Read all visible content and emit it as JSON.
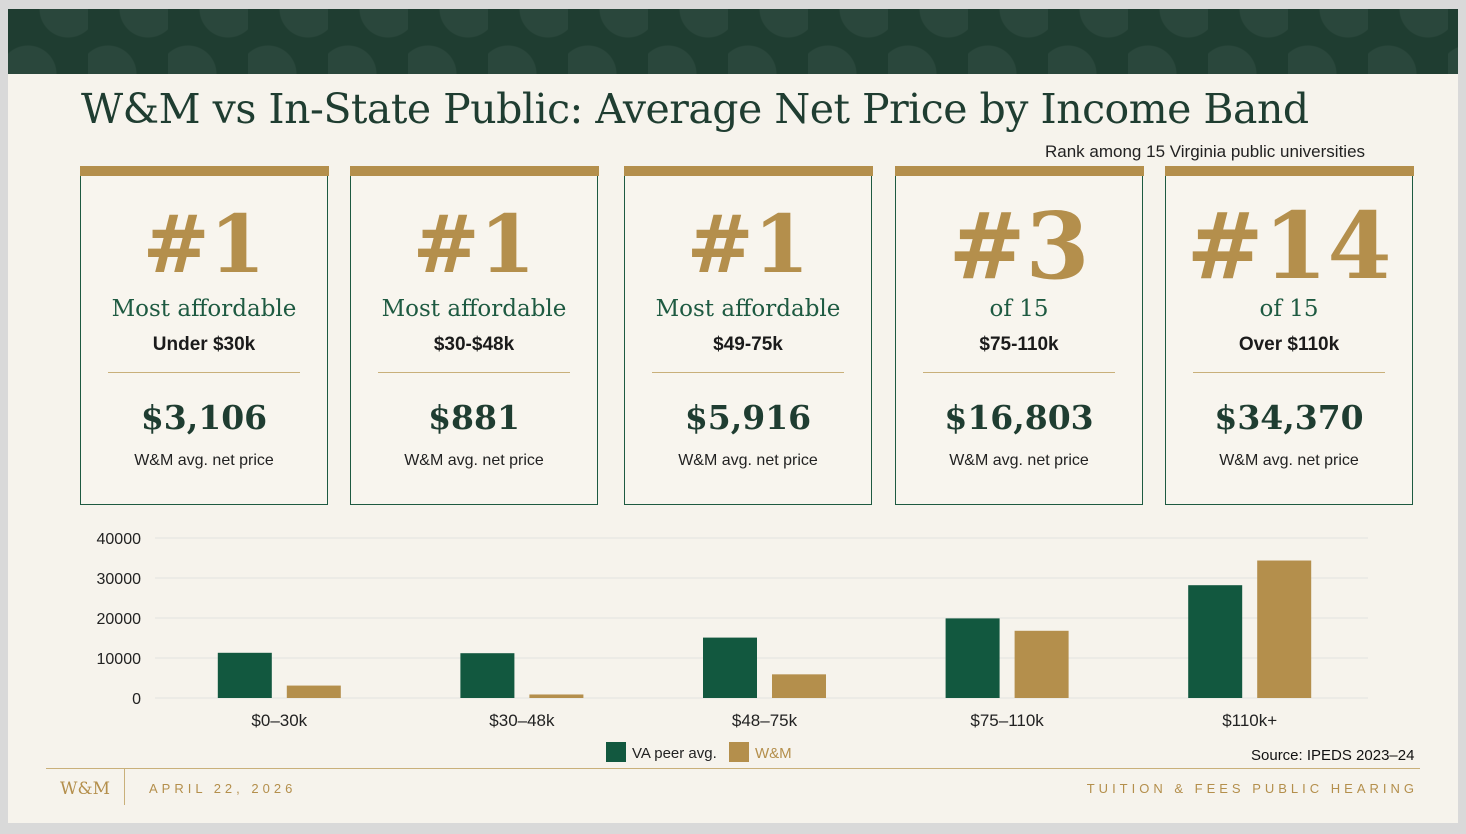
{
  "title": "W&M vs In-State Public: Average Net Price by Income Band",
  "rank_note": "Rank among 15 Virginia public universities",
  "cards": [
    {
      "rank": "#1",
      "label": "Most affordable",
      "band": "Under $30k",
      "price": "$3,106",
      "sub": "W&M avg. net price"
    },
    {
      "rank": "#1",
      "label": "Most affordable",
      "band": "$30-$48k",
      "price": "$881",
      "sub": "W&M avg. net price"
    },
    {
      "rank": "#1",
      "label": "Most affordable",
      "band": "$49-75k",
      "price": "$5,916",
      "sub": "W&M avg. net price"
    },
    {
      "rank": "#3",
      "label": "of 15",
      "band": "$75-110k",
      "price": "$16,803",
      "sub": "W&M avg. net price"
    },
    {
      "rank": "#14",
      "label": "of 15",
      "band": "Over $110k",
      "price": "$34,370",
      "sub": "W&M avg. net price"
    }
  ],
  "chart_data": {
    "type": "bar",
    "categories": [
      "$0–30k",
      "$30–48k",
      "$48–75k",
      "$75–110k",
      "$110k+"
    ],
    "series": [
      {
        "name": "VA peer avg.",
        "values": [
          11300,
          11200,
          15100,
          19900,
          28200
        ],
        "color": "#12583f"
      },
      {
        "name": "W&M",
        "values": [
          3106,
          881,
          5916,
          16803,
          34370
        ],
        "color": "#b48f4c"
      }
    ],
    "ylim": [
      0,
      40000
    ],
    "yticks": [
      "0",
      "10000",
      "20000",
      "30000",
      "40000"
    ],
    "grid": true,
    "legend": "bottom-center"
  },
  "legend": {
    "series1": "VA peer avg.",
    "series2": "W&M"
  },
  "source": "Source: IPEDS 2023–24",
  "footer": {
    "logo": "W&M",
    "date": "APRIL 22, 2026",
    "title": "TUITION & FEES PUBLIC HEARING"
  },
  "colors": {
    "green": "#1f3d31",
    "gold": "#b48f4c",
    "bar_green": "#12583f"
  }
}
